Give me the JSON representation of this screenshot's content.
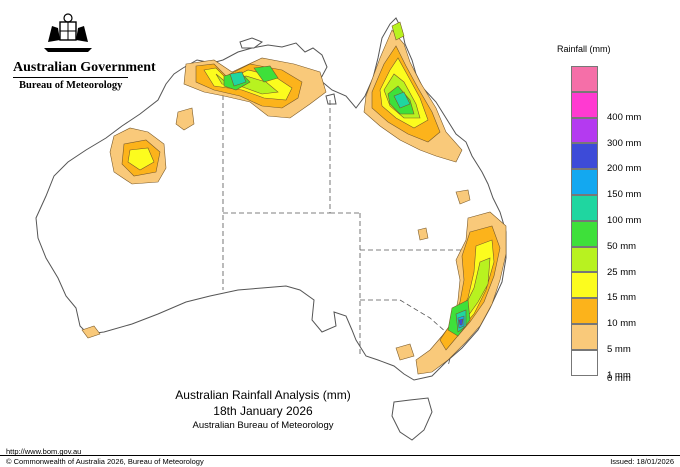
{
  "header": {
    "gov_name": "Australian Government",
    "bom_name": "Bureau of Meteorology"
  },
  "legend": {
    "title": "Rainfall (mm)",
    "items": [
      {
        "label": "",
        "color": "#f56fa8"
      },
      {
        "label": "400 mm",
        "color": "#ff3ad1"
      },
      {
        "label": "300 mm",
        "color": "#b43af0"
      },
      {
        "label": "200 mm",
        "color": "#3d4bd8"
      },
      {
        "label": "150 mm",
        "color": "#13a8f0"
      },
      {
        "label": "100 mm",
        "color": "#1fd6a0"
      },
      {
        "label": "50 mm",
        "color": "#3ee03a"
      },
      {
        "label": "25 mm",
        "color": "#b8f220"
      },
      {
        "label": "15 mm",
        "color": "#fcfc1e"
      },
      {
        "label": "10 mm",
        "color": "#fcb31b"
      },
      {
        "label": "5 mm",
        "color": "#f9c97a"
      },
      {
        "label": "1 mm",
        "color": "#ffffff"
      },
      {
        "label": "0 mm",
        "color": ""
      }
    ]
  },
  "map": {
    "title": "Australian Rainfall Analysis (mm)",
    "date": "18th January 2026",
    "agency": "Australian Bureau of Meteorology"
  },
  "footer": {
    "website": "http://www.bom.gov.au",
    "copyright": "© Commonwealth of Australia 2026, Bureau of Meteorology",
    "issued": "Issued: 18/01/2026"
  }
}
